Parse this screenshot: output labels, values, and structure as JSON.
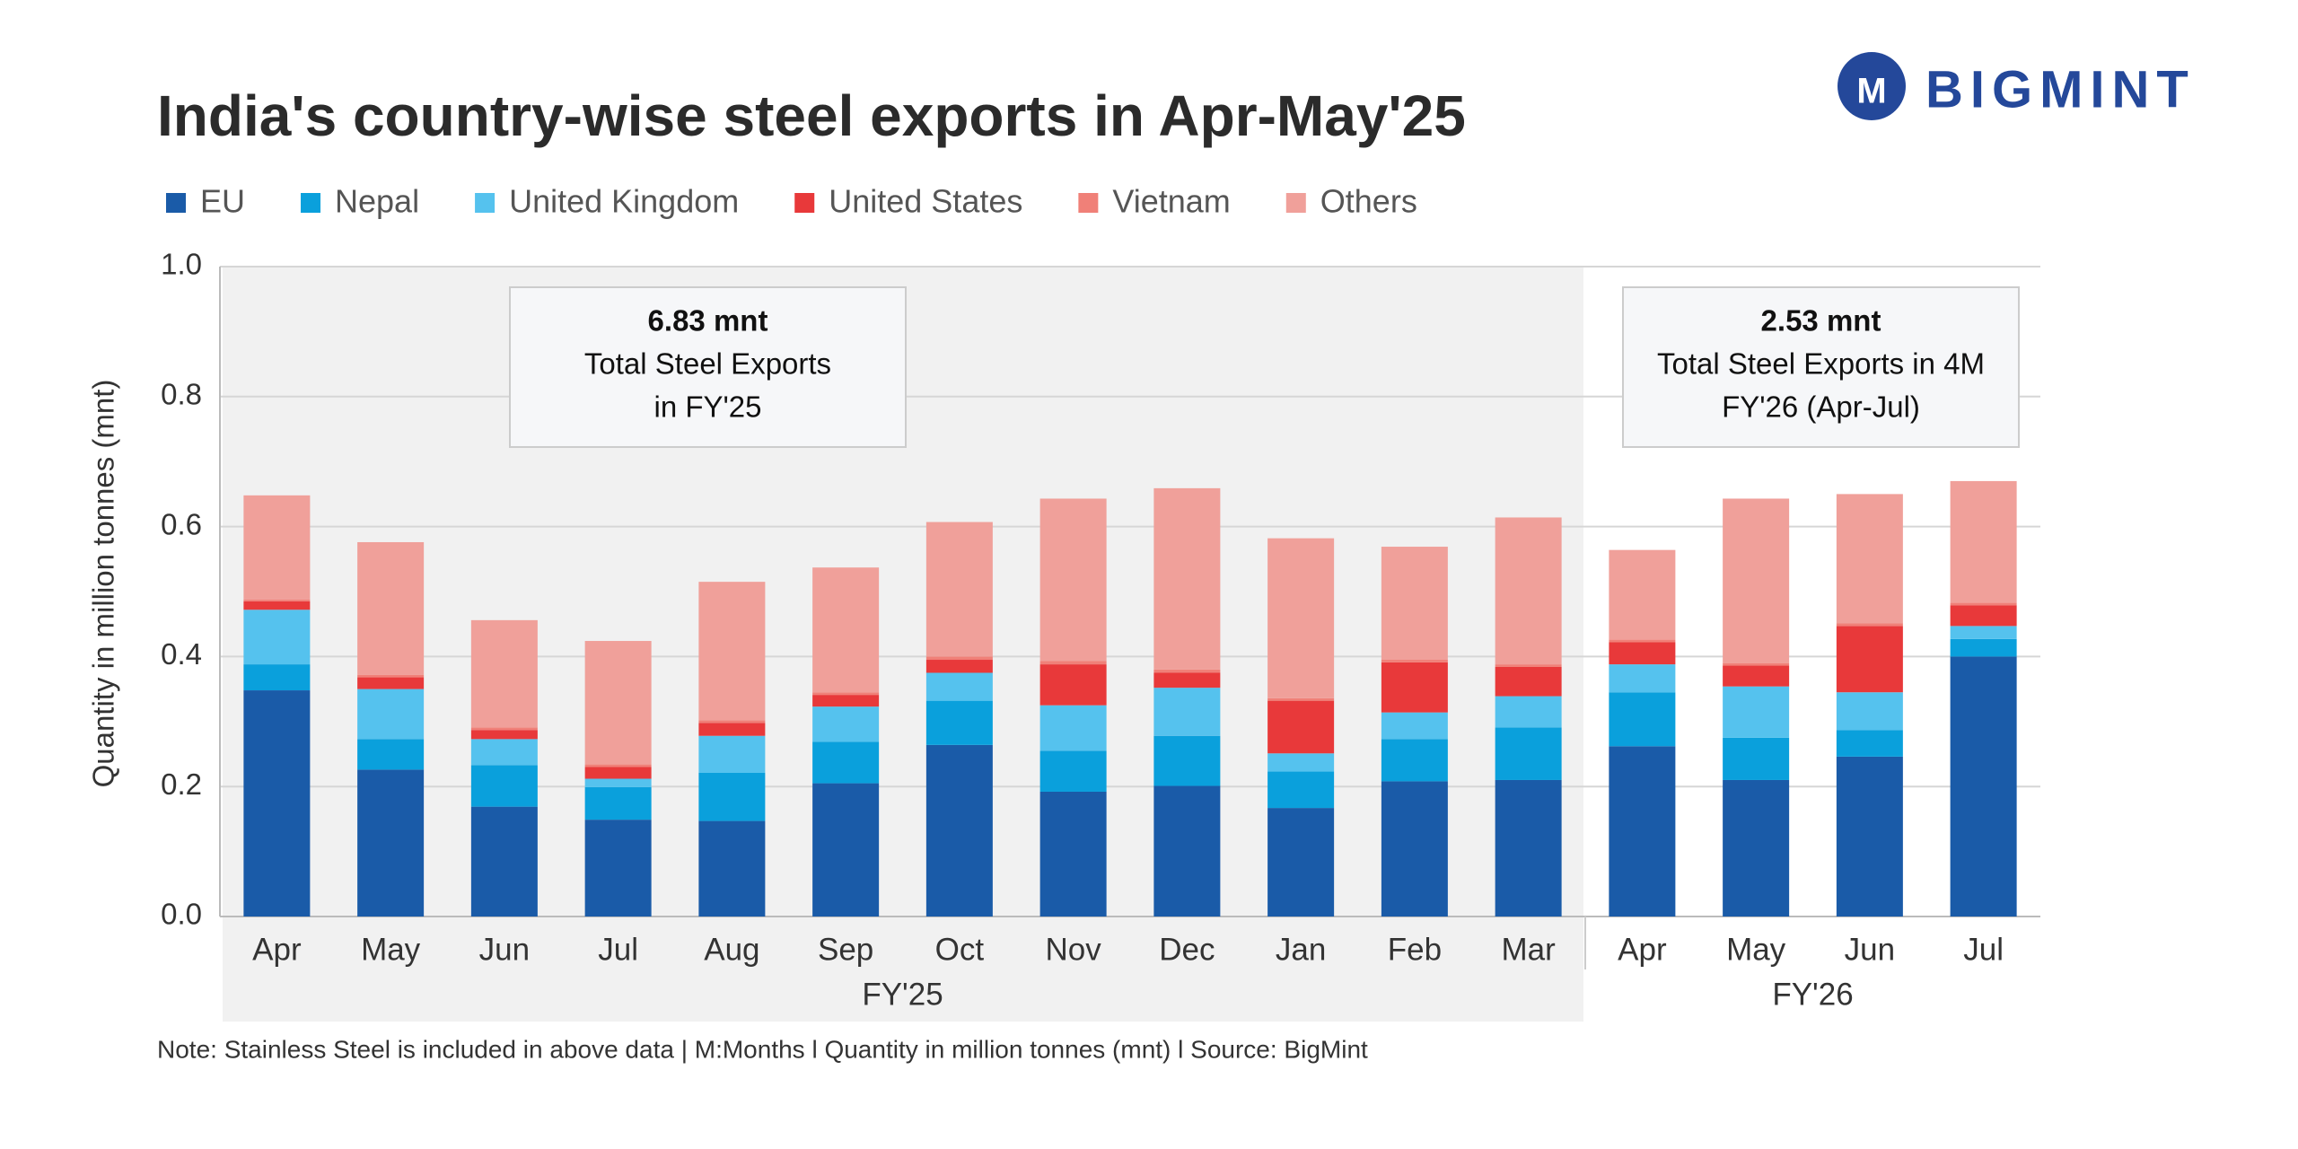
{
  "chart_data": {
    "type": "bar",
    "stacked": true,
    "title": "India's country-wise steel exports in Apr-May'25",
    "logo": "BIGMINT",
    "y_label": "Quantity in million tonnes (mnt)",
    "note": "Note: Stainless Steel is included in above data | M:Months l  Quantity in million tonnes (mnt)  l  Source: BigMint",
    "categories": [
      "Apr",
      "May",
      "Jun",
      "Jul",
      "Aug",
      "Sep",
      "Oct",
      "Nov",
      "Dec",
      "Jan",
      "Feb",
      "Mar",
      "Apr",
      "May",
      "Jun",
      "Jul"
    ],
    "groups": [
      {
        "label": "FY'25",
        "count": 12,
        "annotation": [
          "6.83 mnt",
          "Total Steel Exports",
          "in FY'25"
        ]
      },
      {
        "label": "FY'26",
        "count": 4,
        "annotation": [
          "2.53 mnt",
          "Total Steel Exports in 4M",
          "FY'26 (Apr-Jul)"
        ]
      }
    ],
    "series": [
      {
        "name": "EU",
        "color": "#1a5ba8",
        "values": [
          0.348,
          0.226,
          0.169,
          0.149,
          0.147,
          0.205,
          0.264,
          0.192,
          0.201,
          0.167,
          0.208,
          0.21,
          0.262,
          0.21,
          0.246,
          0.4
        ]
      },
      {
        "name": "Nepal",
        "color": "#0aa0dc",
        "values": [
          0.04,
          0.047,
          0.064,
          0.05,
          0.074,
          0.064,
          0.068,
          0.063,
          0.077,
          0.056,
          0.065,
          0.081,
          0.083,
          0.065,
          0.041,
          0.027
        ]
      },
      {
        "name": "United Kingdom",
        "color": "#55c2ee",
        "values": [
          0.084,
          0.077,
          0.04,
          0.013,
          0.057,
          0.054,
          0.043,
          0.07,
          0.074,
          0.028,
          0.041,
          0.048,
          0.043,
          0.079,
          0.058,
          0.02
        ]
      },
      {
        "name": "United States",
        "color": "#e8393a",
        "values": [
          0.013,
          0.018,
          0.014,
          0.018,
          0.02,
          0.018,
          0.02,
          0.063,
          0.023,
          0.081,
          0.077,
          0.045,
          0.034,
          0.032,
          0.102,
          0.032
        ]
      },
      {
        "name": "Vietnam",
        "color": "#f08078",
        "values": [
          0.003,
          0.004,
          0.004,
          0.004,
          0.004,
          0.004,
          0.005,
          0.005,
          0.005,
          0.004,
          0.004,
          0.004,
          0.004,
          0.004,
          0.004,
          0.004
        ]
      },
      {
        "name": "Others",
        "color": "#f0a09a",
        "values": [
          0.16,
          0.204,
          0.165,
          0.19,
          0.213,
          0.192,
          0.207,
          0.25,
          0.279,
          0.246,
          0.174,
          0.226,
          0.138,
          0.253,
          0.199,
          0.187
        ]
      }
    ],
    "ylim": [
      0,
      1.0
    ],
    "yticks": [
      {
        "value": 0,
        "label": "0.0"
      },
      0.2,
      0.4,
      0.6,
      0.8,
      {
        "value": 1,
        "label": "1.0"
      }
    ],
    "grid": true
  }
}
